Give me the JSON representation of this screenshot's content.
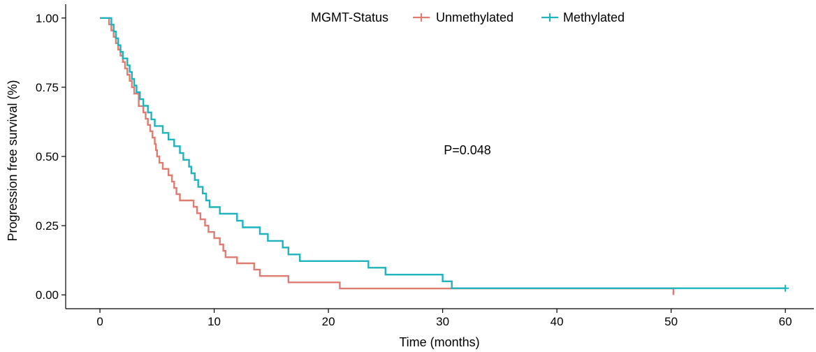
{
  "chart_data": {
    "type": "line",
    "title": "",
    "xlabel": "Time (months)",
    "ylabel": "Progression free survival (%)",
    "xlim": [
      -3,
      62.5
    ],
    "ylim": [
      -0.05,
      1.05
    ],
    "xticks": [
      0,
      10,
      20,
      30,
      40,
      50,
      60
    ],
    "yticks": [
      0.0,
      0.25,
      0.5,
      0.75,
      1.0
    ],
    "xtick_labels": [
      "0",
      "10",
      "20",
      "30",
      "40",
      "50",
      "60"
    ],
    "ytick_labels": [
      "0.00",
      "0.25",
      "0.50",
      "0.75",
      "1.00"
    ],
    "grid": false,
    "legend": {
      "title": "MGMT-Status",
      "placement": "top-center",
      "entries": [
        "Unmethylated",
        "Methylated"
      ]
    },
    "annotation": "P=0.048",
    "series": [
      {
        "name": "Unmethylated",
        "color": "#E07B72",
        "step": true,
        "x": [
          0,
          0.8,
          1.0,
          1.2,
          1.4,
          1.6,
          1.8,
          2.0,
          2.2,
          2.4,
          2.6,
          2.8,
          3.0,
          3.4,
          3.8,
          4.0,
          4.2,
          4.4,
          4.6,
          4.8,
          4.9,
          5.0,
          5.2,
          5.5,
          6.0,
          6.3,
          6.5,
          6.7,
          7.0,
          8.2,
          8.5,
          8.8,
          9.2,
          9.5,
          10.0,
          10.5,
          10.8,
          11.0,
          12.0,
          13.5,
          14.0,
          16.5,
          21.0,
          25.3,
          50.2
        ],
        "y": [
          1.0,
          0.977,
          0.955,
          0.932,
          0.909,
          0.886,
          0.864,
          0.841,
          0.818,
          0.795,
          0.773,
          0.75,
          0.727,
          0.682,
          0.659,
          0.636,
          0.614,
          0.591,
          0.568,
          0.545,
          0.523,
          0.5,
          0.477,
          0.455,
          0.432,
          0.409,
          0.386,
          0.364,
          0.341,
          0.318,
          0.295,
          0.273,
          0.25,
          0.227,
          0.205,
          0.182,
          0.159,
          0.136,
          0.114,
          0.091,
          0.068,
          0.045,
          0.023,
          0.023,
          0.0
        ]
      },
      {
        "name": "Methylated",
        "color": "#1FB3BE",
        "step": true,
        "censor_marks": [
          [
            60.0,
            0.024
          ]
        ],
        "x": [
          0,
          1.0,
          1.2,
          1.4,
          1.6,
          1.8,
          2.0,
          2.4,
          2.6,
          2.8,
          3.0,
          3.2,
          3.5,
          3.8,
          4.2,
          4.5,
          4.8,
          5.5,
          6.0,
          6.5,
          7.0,
          7.3,
          7.8,
          8.0,
          8.3,
          8.6,
          9.0,
          9.3,
          9.6,
          10.5,
          12.0,
          12.5,
          14.0,
          14.7,
          16.0,
          16.5,
          17.5,
          23.5,
          25.0,
          30.0,
          30.8,
          32.5,
          39.5,
          50.5,
          60.0
        ],
        "y": [
          1.0,
          0.976,
          0.951,
          0.927,
          0.902,
          0.878,
          0.854,
          0.829,
          0.805,
          0.78,
          0.756,
          0.732,
          0.707,
          0.683,
          0.659,
          0.634,
          0.61,
          0.585,
          0.561,
          0.537,
          0.512,
          0.488,
          0.463,
          0.439,
          0.415,
          0.39,
          0.366,
          0.341,
          0.317,
          0.293,
          0.268,
          0.244,
          0.22,
          0.195,
          0.171,
          0.146,
          0.122,
          0.098,
          0.073,
          0.049,
          0.024,
          0.024,
          0.024,
          0.024,
          0.024
        ]
      }
    ]
  }
}
